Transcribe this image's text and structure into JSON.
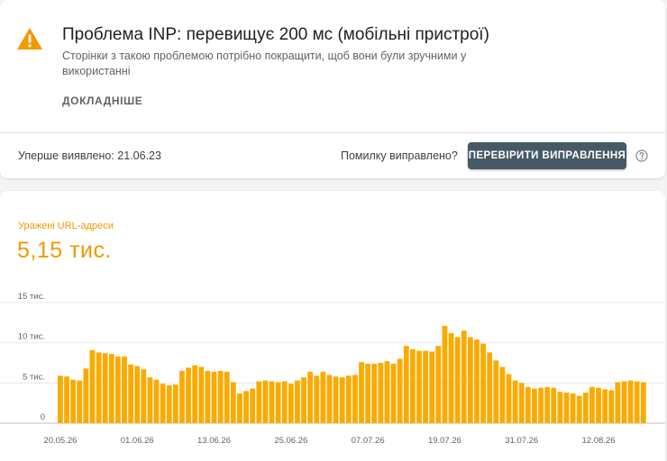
{
  "issue": {
    "title": "Проблема INP: перевищує 200 мс (мобільні пристрої)",
    "description": "Сторінки з такою проблемою потрібно покращити, щоб вони були зручними у використанні",
    "learn_more": "ДОКЛАДНІШЕ",
    "first_detected": "Уперше виявлено: 21.06.23",
    "fixed_question": "Помилку виправлено?",
    "validate_button": "ПЕРЕВІРИТИ ВИПРАВЛЕННЯ",
    "warning_color": "#f29900"
  },
  "metric": {
    "label": "Уражені URL-адреси",
    "value": "5,15 тис.",
    "color": "#f29900"
  },
  "chart_data": {
    "type": "bar",
    "ylim": [
      0,
      15000
    ],
    "y_ticks": [
      {
        "value": 0,
        "label": "0"
      },
      {
        "value": 5000,
        "label": "5 тис."
      },
      {
        "value": 10000,
        "label": "10 тис."
      },
      {
        "value": 15000,
        "label": "15 тис."
      }
    ],
    "x_ticks": [
      {
        "index": 0,
        "label": "20.05.26"
      },
      {
        "index": 12,
        "label": "01.06.26"
      },
      {
        "index": 24,
        "label": "13.06.26"
      },
      {
        "index": 36,
        "label": "25.06.26"
      },
      {
        "index": 48,
        "label": "07.07.26"
      },
      {
        "index": 60,
        "label": "19.07.26"
      },
      {
        "index": 72,
        "label": "31.07.26"
      },
      {
        "index": 84,
        "label": "12.08.26"
      }
    ],
    "bar_color": "#f9ab00",
    "grid": true,
    "values": [
      5900,
      5800,
      5400,
      5300,
      6800,
      9100,
      8800,
      8700,
      8600,
      8300,
      8300,
      7300,
      7100,
      6700,
      5700,
      5400,
      4900,
      4700,
      4800,
      6500,
      6900,
      7200,
      7000,
      6500,
      6400,
      6500,
      6400,
      5100,
      3700,
      4000,
      4300,
      5200,
      5300,
      5200,
      5100,
      5200,
      4900,
      5300,
      5700,
      6400,
      5900,
      6400,
      6000,
      5800,
      5700,
      5900,
      6000,
      7600,
      7400,
      7400,
      7500,
      7700,
      7400,
      8000,
      9600,
      9200,
      9000,
      9000,
      8900,
      9600,
      12100,
      11200,
      10700,
      11500,
      10700,
      10400,
      9900,
      8800,
      7800,
      7000,
      6100,
      5300,
      5000,
      4500,
      4300,
      4400,
      4500,
      4400,
      3900,
      3800,
      3700,
      3400,
      3800,
      4500,
      4400,
      4200,
      4100,
      5100,
      5200,
      5300,
      5200,
      5100
    ]
  }
}
